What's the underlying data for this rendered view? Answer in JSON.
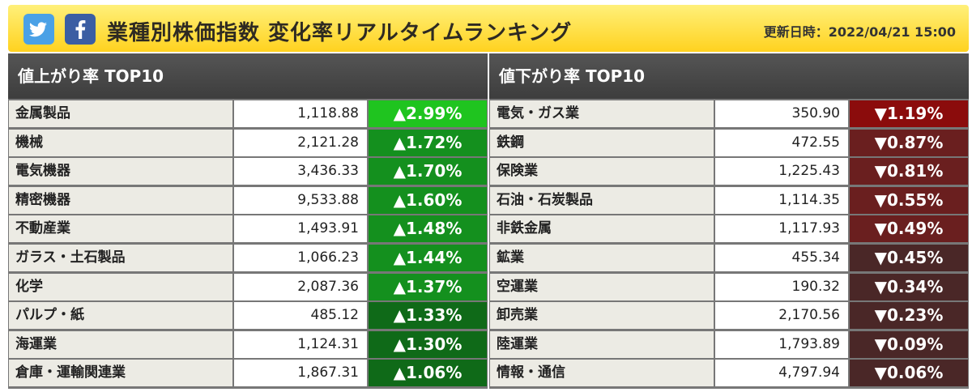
{
  "header": {
    "title": "業種別株価指数 変化率リアルタイムランキング",
    "updated": "更新日時：2022/04/21 15:00",
    "share_icons": [
      "twitter-icon",
      "facebook-icon"
    ]
  },
  "colors": {
    "header_bg": "#ffd21f",
    "up_top": "#1fc41f",
    "up": "#14901e",
    "up_dark": "#0f6a18",
    "down_top": "#8b0c0c",
    "down": "#6a1f1f",
    "down_dark": "#4a2727"
  },
  "gainers": {
    "heading": "値上がり率 TOP10",
    "rows": [
      {
        "name": "金属製品",
        "value": "1,118.88",
        "change": "▲2.99%"
      },
      {
        "name": "機械",
        "value": "2,121.28",
        "change": "▲1.72%"
      },
      {
        "name": "電気機器",
        "value": "3,436.33",
        "change": "▲1.70%"
      },
      {
        "name": "精密機器",
        "value": "9,533.88",
        "change": "▲1.60%"
      },
      {
        "name": "不動産業",
        "value": "1,493.91",
        "change": "▲1.48%"
      },
      {
        "name": "ガラス・土石製品",
        "value": "1,066.23",
        "change": "▲1.44%"
      },
      {
        "name": "化学",
        "value": "2,087.36",
        "change": "▲1.37%"
      },
      {
        "name": "パルプ・紙",
        "value": "485.12",
        "change": "▲1.33%"
      },
      {
        "name": "海運業",
        "value": "1,124.31",
        "change": "▲1.30%"
      },
      {
        "name": "倉庫・運輸関連業",
        "value": "1,867.31",
        "change": "▲1.06%"
      }
    ]
  },
  "losers": {
    "heading": "値下がり率 TOP10",
    "rows": [
      {
        "name": "電気・ガス業",
        "value": "350.90",
        "change": "▼1.19%"
      },
      {
        "name": "鉄鋼",
        "value": "472.55",
        "change": "▼0.87%"
      },
      {
        "name": "保険業",
        "value": "1,225.43",
        "change": "▼0.81%"
      },
      {
        "name": "石油・石炭製品",
        "value": "1,114.35",
        "change": "▼0.55%"
      },
      {
        "name": "非鉄金属",
        "value": "1,117.93",
        "change": "▼0.49%"
      },
      {
        "name": "鉱業",
        "value": "455.34",
        "change": "▼0.45%"
      },
      {
        "name": "空運業",
        "value": "190.32",
        "change": "▼0.34%"
      },
      {
        "name": "卸売業",
        "value": "2,170.56",
        "change": "▼0.23%"
      },
      {
        "name": "陸運業",
        "value": "1,793.89",
        "change": "▼0.09%"
      },
      {
        "name": "情報・通信",
        "value": "4,797.94",
        "change": "▼0.06%"
      }
    ]
  }
}
